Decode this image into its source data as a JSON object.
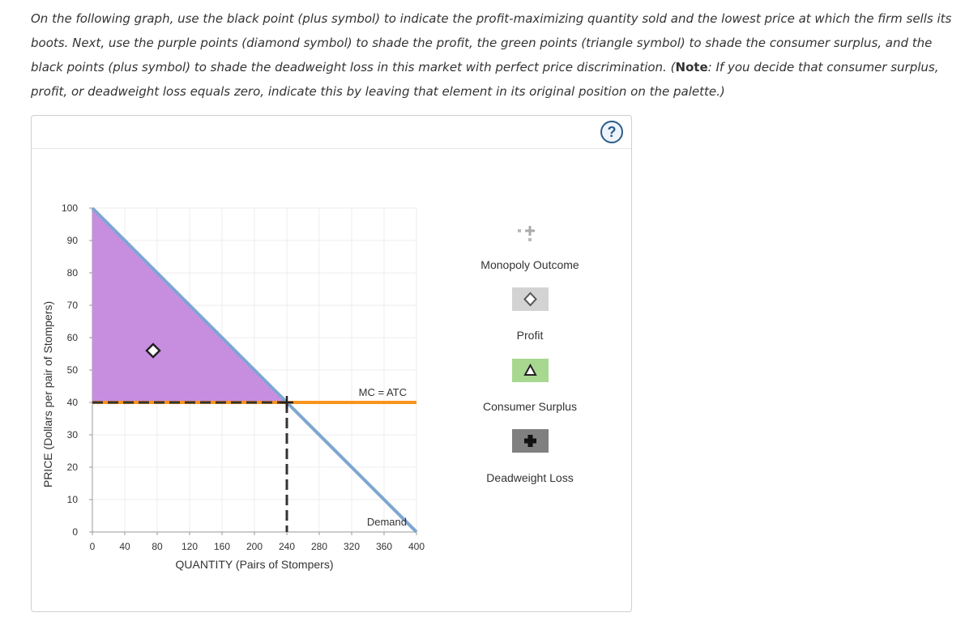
{
  "instructions": {
    "p1": "On the following graph, use the black point (plus symbol) to indicate the profit-maximizing quantity sold and the lowest price at which the firm sells its boots. Next, use the purple points (diamond symbol) to shade the profit, the green points (triangle symbol) to shade the consumer surplus, and the black points (plus symbol) to shade the deadweight loss in this market with perfect price discrimination. (",
    "note_label": "Note",
    "p2": ": If you decide that consumer surplus, profit, or deadweight loss equals zero, indicate this by leaving that element in its original position on the palette.)"
  },
  "help_label": "?",
  "palette": {
    "monopoly_outcome": "Monopoly Outcome",
    "profit": "Profit",
    "consumer_surplus": "Consumer Surplus",
    "deadweight_loss": "Deadweight Loss"
  },
  "colors": {
    "demand": "#7ea6d1",
    "mc": "#f7941d",
    "profit_fill": "#c78ee0",
    "profit_swatch": "#d3d3d3",
    "cs_swatch": "#a8d890",
    "dwl_swatch": "#808080"
  },
  "chart_data": {
    "type": "line",
    "xlabel": "QUANTITY (Pairs of Stompers)",
    "ylabel": "PRICE (Dollars per pair of Stompers)",
    "xlim": [
      0,
      400
    ],
    "ylim": [
      0,
      100
    ],
    "xticks": [
      0,
      40,
      80,
      120,
      160,
      200,
      240,
      280,
      320,
      360,
      400
    ],
    "yticks": [
      0,
      10,
      20,
      30,
      40,
      50,
      60,
      70,
      80,
      90,
      100
    ],
    "grid": true,
    "series": [
      {
        "name": "Demand",
        "x": [
          0,
          400
        ],
        "y": [
          100,
          0
        ]
      },
      {
        "name": "MC = ATC",
        "x": [
          0,
          400
        ],
        "y": [
          40,
          40
        ]
      }
    ],
    "profit_region": {
      "x": [
        0,
        0,
        240
      ],
      "y": [
        40,
        100,
        40
      ]
    },
    "monopoly_point": {
      "x": 240,
      "y": 40
    },
    "profit_marker": {
      "x": 75,
      "y": 56
    }
  }
}
